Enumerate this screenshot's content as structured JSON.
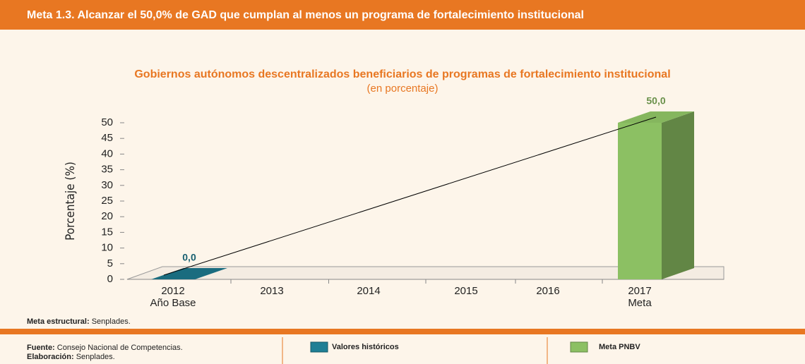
{
  "header": {
    "label": "Meta 1.3.",
    "text": "Alcanzar el 50,0% de GAD que cumplan al menos un programa de fortalecimiento institucional"
  },
  "chart_data": {
    "type": "bar",
    "title": "Gobiernos autónomos descentralizados beneficiarios de programas de fortalecimiento institucional",
    "subtitle": "(en porcentaje)",
    "y_label": "Porcentaje (%)",
    "categories": [
      "2012",
      "2013",
      "2014",
      "2015",
      "2016",
      "2017"
    ],
    "category_sublabels": [
      "Año Base",
      null,
      null,
      null,
      null,
      "Meta"
    ],
    "series": [
      {
        "name": "Valores históricos",
        "color": "#1f7f95",
        "values": [
          0,
          null,
          null,
          null,
          null,
          null
        ],
        "value_labels": [
          "0,0",
          null,
          null,
          null,
          null,
          null
        ]
      },
      {
        "name": "Meta PNBV",
        "color": "#8cc063",
        "values": [
          null,
          null,
          null,
          null,
          null,
          50
        ],
        "value_labels": [
          null,
          null,
          null,
          null,
          null,
          "50,0"
        ]
      }
    ],
    "ylim": [
      0,
      50
    ],
    "yticks": [
      0,
      5,
      10,
      15,
      20,
      25,
      30,
      35,
      40,
      45,
      50
    ]
  },
  "note": {
    "label": "Meta estructural:",
    "text": "Senplades."
  },
  "footer": {
    "source_label": "Fuente:",
    "source": "Consejo Nacional de Competencias.",
    "made_label": "Elaboración:",
    "made": "Senplades."
  }
}
